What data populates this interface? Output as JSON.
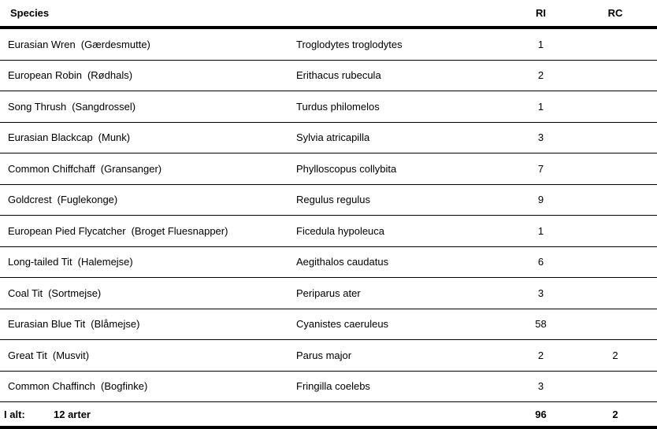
{
  "table": {
    "headers": {
      "species": "Species",
      "ri": "RI",
      "rc": "RC"
    },
    "rows": [
      {
        "common": "Eurasian Wren",
        "danish": "(Gærdesmutte)",
        "scientific": "Troglodytes troglodytes",
        "ri": "1",
        "rc": ""
      },
      {
        "common": "European Robin",
        "danish": "(Rødhals)",
        "scientific": "Erithacus rubecula",
        "ri": "2",
        "rc": ""
      },
      {
        "common": "Song Thrush",
        "danish": "(Sangdrossel)",
        "scientific": "Turdus philomelos",
        "ri": "1",
        "rc": ""
      },
      {
        "common": "Eurasian Blackcap",
        "danish": "(Munk)",
        "scientific": "Sylvia atricapilla",
        "ri": "3",
        "rc": ""
      },
      {
        "common": "Common Chiffchaff",
        "danish": "(Gransanger)",
        "scientific": "Phylloscopus collybita",
        "ri": "7",
        "rc": ""
      },
      {
        "common": "Goldcrest",
        "danish": "(Fuglekonge)",
        "scientific": "Regulus regulus",
        "ri": "9",
        "rc": ""
      },
      {
        "common": "European Pied Flycatcher",
        "danish": "(Broget Fluesnapper)",
        "scientific": "Ficedula hypoleuca",
        "ri": "1",
        "rc": ""
      },
      {
        "common": "Long-tailed Tit",
        "danish": "(Halemejse)",
        "scientific": "Aegithalos caudatus",
        "ri": "6",
        "rc": ""
      },
      {
        "common": "Coal Tit",
        "danish": "(Sortmejse)",
        "scientific": "Periparus ater",
        "ri": "3",
        "rc": ""
      },
      {
        "common": "Eurasian Blue Tit",
        "danish": "(Blåmejse)",
        "scientific": "Cyanistes caeruleus",
        "ri": "58",
        "rc": ""
      },
      {
        "common": "Great Tit",
        "danish": "(Musvit)",
        "scientific": "Parus major",
        "ri": "2",
        "rc": "2"
      },
      {
        "common": "Common Chaffinch",
        "danish": "(Bogfinke)",
        "scientific": "Fringilla coelebs",
        "ri": "3",
        "rc": ""
      }
    ],
    "footer": {
      "label": "I alt:",
      "count": "12 arter",
      "ri_total": "96",
      "rc_total": "2"
    }
  },
  "colors": {
    "text": "#000000",
    "background": "#ffffff",
    "border": "#000000"
  }
}
